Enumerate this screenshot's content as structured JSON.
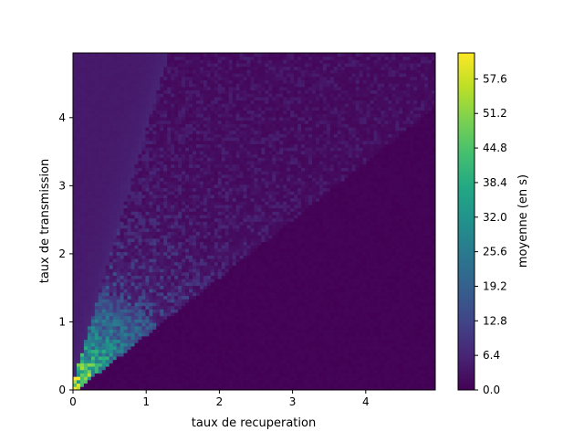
{
  "chart_data": {
    "type": "heatmap",
    "xlabel": "taux de recuperation",
    "ylabel": "taux de transmission",
    "xlim": [
      0,
      4.95
    ],
    "ylim": [
      0,
      4.95
    ],
    "x_ticks": [
      0,
      1,
      2,
      3,
      4
    ],
    "y_ticks": [
      0,
      1,
      2,
      3,
      4
    ],
    "x_tick_labels": [
      "0",
      "1",
      "2",
      "3",
      "4"
    ],
    "y_tick_labels": [
      "0",
      "1",
      "2",
      "3",
      "4"
    ],
    "colorbar": {
      "label": "moyenne (en s)",
      "min": 0.0,
      "max": 62.4,
      "ticks": [
        0.0,
        6.4,
        12.8,
        19.2,
        25.6,
        32.0,
        38.4,
        44.8,
        51.2,
        57.6
      ],
      "tick_labels": [
        "0.0",
        "6.4",
        "12.8",
        "19.2",
        "25.6",
        "32.0",
        "38.4",
        "44.8",
        "51.2",
        "57.6"
      ],
      "colormap": "viridis"
    },
    "description_regions": [
      {
        "region": "above line y = 3.7x",
        "typical_value": 4
      },
      {
        "region": "below line y = 0.85x",
        "typical_value": 0
      },
      {
        "region": "wedge between lines near origin",
        "typical_value": 35
      },
      {
        "region": "wedge between lines, far from origin",
        "typical_value": 3
      }
    ]
  }
}
